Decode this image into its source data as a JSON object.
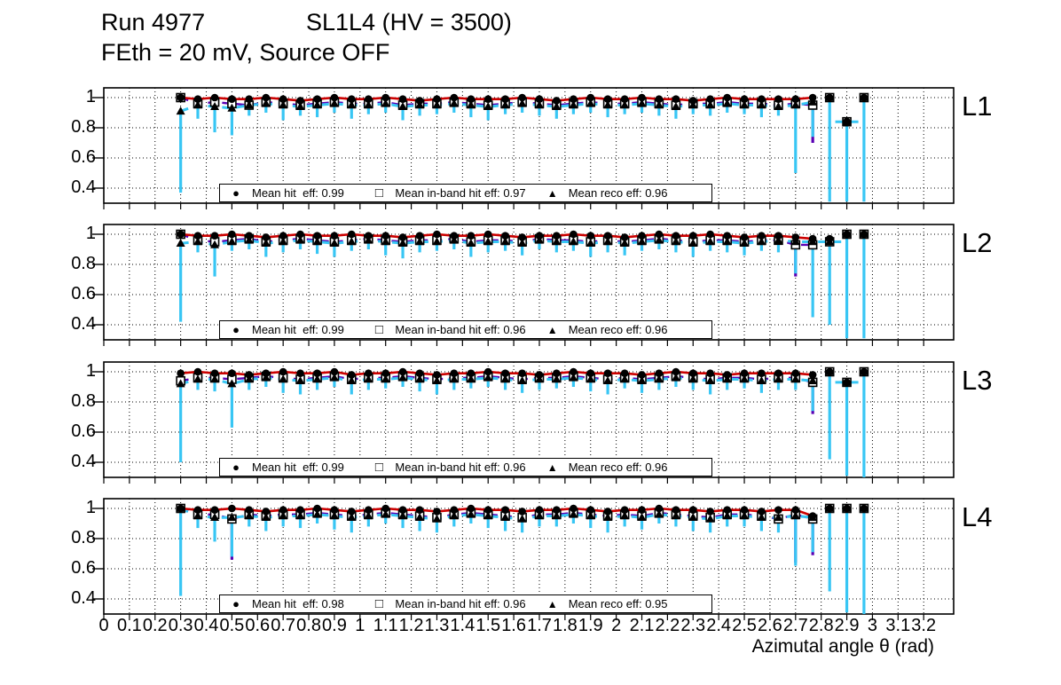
{
  "title": {
    "run": "Run 4977",
    "config": "SL1L4 (HV = 3500)",
    "subtitle": "FEth = 20 mV, Source OFF"
  },
  "axes": {
    "x_label": "Azimutal angle θ (rad)",
    "x_tick_labels": [
      "0",
      "0.1",
      "0.2",
      "0.3",
      "0.4",
      "0.5",
      "0.6",
      "0.7",
      "0.8",
      "0.9",
      "1",
      "1.1",
      "1.2",
      "1.3",
      "1.4",
      "1.5",
      "1.6",
      "1.7",
      "1.8",
      "1.9",
      "2",
      "2.1",
      "2.2",
      "2.3",
      "2.4",
      "2.5",
      "2.6",
      "2.7",
      "2.8",
      "2.9",
      "3",
      "3.1",
      "3.2"
    ],
    "x_tick_values": [
      0,
      0.1,
      0.2,
      0.3,
      0.4,
      0.5,
      0.6,
      0.7,
      0.8,
      0.9,
      1,
      1.1,
      1.2,
      1.3,
      1.4,
      1.5,
      1.6,
      1.7,
      1.8,
      1.9,
      2,
      2.1,
      2.2,
      2.3,
      2.4,
      2.5,
      2.6,
      2.7,
      2.8,
      2.9,
      3,
      3.1,
      3.2
    ],
    "x_min": 0,
    "x_max": 3.317,
    "y_tick_labels": [
      "1",
      "0.8",
      "0.6",
      "0.4"
    ],
    "y_tick_values": [
      1,
      0.8,
      0.6,
      0.4
    ],
    "y_view_min": 0.3,
    "y_view_max": 1.065,
    "grid": "dotted"
  },
  "colors": {
    "hit_line": "#cc0000",
    "inband_line": "#5a00b4",
    "reco_line": "#38c6f4",
    "marker": "#000000",
    "frame": "#000000",
    "background": "#ffffff"
  },
  "chart_data": {
    "type": "scatter",
    "note": "4 stacked efficiency panels vs azimuthal angle; three series per panel: hit eff (filled circle, red line), in-band hit eff (open square, purple dashed line), reco eff (filled triangle, cyan dashed line with downward cyan error bars)",
    "x": [
      0.3,
      0.367,
      0.433,
      0.5,
      0.567,
      0.633,
      0.7,
      0.767,
      0.833,
      0.9,
      0.967,
      1.033,
      1.1,
      1.167,
      1.233,
      1.3,
      1.367,
      1.433,
      1.5,
      1.567,
      1.633,
      1.7,
      1.767,
      1.833,
      1.9,
      1.967,
      2.033,
      2.1,
      2.167,
      2.233,
      2.3,
      2.367,
      2.433,
      2.5,
      2.567,
      2.633,
      2.7,
      2.767,
      2.833,
      2.9,
      2.967
    ],
    "series_markers": [
      "filled-circle",
      "open-square",
      "filled-triangle"
    ],
    "panels": [
      {
        "label": "L1",
        "legend": [
          "Mean hit  eff: 0.99",
          "Mean in-band hit eff: 0.97",
          "Mean reco eff: 0.96"
        ],
        "hit": [
          1.0,
          0.99,
          1.0,
          0.99,
          0.99,
          1.0,
          0.99,
          0.98,
          0.99,
          1.0,
          0.99,
          0.99,
          1.0,
          0.99,
          0.98,
          0.99,
          1.0,
          0.99,
          0.99,
          0.99,
          1.0,
          0.99,
          0.98,
          0.99,
          1.0,
          0.99,
          0.99,
          1.0,
          0.99,
          0.99,
          0.98,
          0.99,
          1.0,
          0.99,
          0.99,
          0.99,
          0.99,
          1.0,
          1.0,
          0.84,
          1.0
        ],
        "inband": [
          1.0,
          0.96,
          0.97,
          0.96,
          0.95,
          0.97,
          0.96,
          0.95,
          0.96,
          0.97,
          0.96,
          0.96,
          0.97,
          0.95,
          0.96,
          0.96,
          0.97,
          0.96,
          0.95,
          0.96,
          0.97,
          0.96,
          0.95,
          0.96,
          0.97,
          0.96,
          0.96,
          0.97,
          0.96,
          0.95,
          0.96,
          0.96,
          0.97,
          0.96,
          0.96,
          0.95,
          0.96,
          0.95,
          1.0,
          0.84,
          1.0
        ],
        "reco": [
          0.91,
          0.95,
          0.94,
          0.93,
          0.95,
          0.96,
          0.95,
          0.94,
          0.95,
          0.96,
          0.95,
          0.95,
          0.96,
          0.94,
          0.95,
          0.95,
          0.96,
          0.95,
          0.94,
          0.95,
          0.96,
          0.95,
          0.94,
          0.95,
          0.96,
          0.95,
          0.95,
          0.96,
          0.95,
          0.94,
          0.95,
          0.95,
          0.96,
          0.95,
          0.95,
          0.94,
          0.95,
          0.97,
          1.0,
          0.84,
          1.0
        ],
        "err_lo": [
          0.37,
          0.86,
          0.77,
          0.75,
          0.88,
          0.9,
          0.85,
          0.88,
          0.87,
          0.9,
          0.86,
          0.89,
          0.9,
          0.85,
          0.88,
          0.89,
          0.9,
          0.87,
          0.85,
          0.89,
          0.9,
          0.88,
          0.86,
          0.89,
          0.9,
          0.87,
          0.89,
          0.9,
          0.88,
          0.86,
          0.89,
          0.88,
          0.9,
          0.89,
          0.87,
          0.88,
          0.5,
          0.74,
          0.31,
          0.31,
          0.31
        ],
        "purple_bars": [
          {
            "i": 37,
            "lo": 0.7
          }
        ]
      },
      {
        "label": "L2",
        "legend": [
          "Mean hit  eff: 0.99",
          "Mean in-band hit eff: 0.96",
          "Mean reco eff: 0.96"
        ],
        "hit": [
          1.0,
          0.99,
          0.99,
          1.0,
          0.99,
          0.98,
          0.99,
          1.0,
          0.99,
          0.99,
          1.0,
          0.99,
          0.99,
          0.98,
          0.99,
          1.0,
          0.99,
          0.99,
          1.0,
          0.99,
          0.98,
          0.99,
          0.99,
          1.0,
          0.99,
          0.99,
          0.98,
          0.99,
          1.0,
          0.99,
          0.99,
          1.0,
          0.99,
          0.98,
          0.99,
          0.99,
          0.98,
          0.97,
          0.97,
          1.0,
          1.0
        ],
        "inband": [
          1.0,
          0.96,
          0.95,
          0.96,
          0.97,
          0.95,
          0.96,
          0.97,
          0.96,
          0.95,
          0.96,
          0.97,
          0.96,
          0.95,
          0.96,
          0.96,
          0.97,
          0.95,
          0.96,
          0.96,
          0.95,
          0.97,
          0.96,
          0.96,
          0.95,
          0.96,
          0.95,
          0.96,
          0.97,
          0.96,
          0.95,
          0.96,
          0.96,
          0.95,
          0.96,
          0.96,
          0.93,
          0.93,
          0.95,
          1.0,
          1.0
        ],
        "reco": [
          0.94,
          0.95,
          0.93,
          0.95,
          0.96,
          0.94,
          0.95,
          0.96,
          0.95,
          0.94,
          0.95,
          0.96,
          0.95,
          0.94,
          0.95,
          0.95,
          0.96,
          0.94,
          0.95,
          0.95,
          0.94,
          0.96,
          0.95,
          0.95,
          0.94,
          0.95,
          0.94,
          0.95,
          0.96,
          0.95,
          0.94,
          0.95,
          0.95,
          0.94,
          0.95,
          0.96,
          0.95,
          0.95,
          0.95,
          1.0,
          1.0
        ],
        "err_lo": [
          0.42,
          0.88,
          0.72,
          0.89,
          0.9,
          0.85,
          0.88,
          0.9,
          0.87,
          0.85,
          0.89,
          0.9,
          0.86,
          0.84,
          0.88,
          0.89,
          0.9,
          0.85,
          0.88,
          0.89,
          0.86,
          0.9,
          0.88,
          0.89,
          0.85,
          0.88,
          0.86,
          0.89,
          0.9,
          0.88,
          0.85,
          0.89,
          0.88,
          0.86,
          0.89,
          0.88,
          0.74,
          0.45,
          0.4,
          0.31,
          0.31
        ],
        "purple_bars": [
          {
            "i": 36,
            "lo": 0.72
          }
        ]
      },
      {
        "label": "L3",
        "legend": [
          "Mean hit  eff: 0.99",
          "Mean in-band hit eff: 0.96",
          "Mean reco eff: 0.96"
        ],
        "hit": [
          0.99,
          1.0,
          0.99,
          0.99,
          0.98,
          0.99,
          1.0,
          0.99,
          0.99,
          1.0,
          0.98,
          0.99,
          0.99,
          1.0,
          0.99,
          0.98,
          0.99,
          0.99,
          1.0,
          0.99,
          0.99,
          0.98,
          0.99,
          1.0,
          0.99,
          0.99,
          0.99,
          0.98,
          0.99,
          1.0,
          0.99,
          0.99,
          0.98,
          0.99,
          0.99,
          0.99,
          0.99,
          0.98,
          1.0,
          0.93,
          1.0
        ],
        "inband": [
          0.94,
          0.96,
          0.96,
          0.95,
          0.96,
          0.97,
          0.96,
          0.95,
          0.96,
          0.97,
          0.95,
          0.96,
          0.96,
          0.97,
          0.96,
          0.95,
          0.96,
          0.96,
          0.97,
          0.96,
          0.95,
          0.96,
          0.96,
          0.97,
          0.96,
          0.95,
          0.96,
          0.95,
          0.96,
          0.97,
          0.96,
          0.95,
          0.96,
          0.96,
          0.95,
          0.96,
          0.96,
          0.93,
          1.0,
          0.93,
          1.0
        ],
        "reco": [
          0.92,
          0.95,
          0.95,
          0.92,
          0.95,
          0.96,
          0.95,
          0.94,
          0.95,
          0.96,
          0.94,
          0.95,
          0.95,
          0.96,
          0.95,
          0.94,
          0.95,
          0.95,
          0.96,
          0.95,
          0.94,
          0.95,
          0.95,
          0.96,
          0.95,
          0.94,
          0.95,
          0.94,
          0.95,
          0.96,
          0.95,
          0.94,
          0.95,
          0.95,
          0.94,
          0.95,
          0.95,
          0.94,
          1.0,
          0.93,
          1.0
        ],
        "err_lo": [
          0.4,
          0.88,
          0.87,
          0.63,
          0.88,
          0.9,
          0.86,
          0.85,
          0.88,
          0.9,
          0.85,
          0.88,
          0.89,
          0.9,
          0.87,
          0.85,
          0.88,
          0.89,
          0.9,
          0.88,
          0.86,
          0.88,
          0.89,
          0.9,
          0.87,
          0.85,
          0.89,
          0.86,
          0.88,
          0.9,
          0.88,
          0.85,
          0.88,
          0.89,
          0.86,
          0.88,
          0.88,
          0.74,
          0.42,
          0.31,
          0.3
        ],
        "purple_bars": [
          {
            "i": 37,
            "lo": 0.72
          }
        ]
      },
      {
        "label": "L4",
        "legend": [
          "Mean hit  eff: 0.98",
          "Mean in-band hit eff: 0.96",
          "Mean reco eff: 0.95"
        ],
        "hit": [
          1.0,
          0.99,
          0.99,
          1.0,
          0.99,
          0.98,
          0.99,
          0.99,
          1.0,
          0.99,
          0.98,
          0.99,
          1.0,
          0.99,
          0.99,
          0.98,
          0.99,
          1.0,
          0.99,
          0.99,
          0.98,
          0.99,
          0.99,
          1.0,
          0.99,
          0.98,
          0.99,
          0.99,
          1.0,
          0.99,
          0.99,
          0.98,
          0.99,
          0.99,
          0.98,
          0.99,
          0.99,
          0.95,
          1.0,
          1.0,
          1.0
        ],
        "inband": [
          1.0,
          0.96,
          0.96,
          0.93,
          0.96,
          0.95,
          0.96,
          0.96,
          0.97,
          0.96,
          0.95,
          0.96,
          0.97,
          0.96,
          0.95,
          0.94,
          0.96,
          0.97,
          0.96,
          0.95,
          0.94,
          0.96,
          0.96,
          0.97,
          0.96,
          0.95,
          0.96,
          0.95,
          0.97,
          0.96,
          0.95,
          0.94,
          0.96,
          0.96,
          0.95,
          0.93,
          0.96,
          0.93,
          1.0,
          1.0,
          1.0
        ],
        "reco": [
          1.0,
          0.95,
          0.94,
          0.94,
          0.95,
          0.94,
          0.95,
          0.95,
          0.96,
          0.95,
          0.94,
          0.95,
          0.96,
          0.95,
          0.94,
          0.93,
          0.95,
          0.96,
          0.95,
          0.94,
          0.93,
          0.95,
          0.95,
          0.96,
          0.95,
          0.94,
          0.95,
          0.94,
          0.96,
          0.95,
          0.94,
          0.93,
          0.95,
          0.95,
          0.94,
          0.94,
          0.95,
          0.94,
          1.0,
          1.0,
          1.0
        ],
        "err_lo": [
          0.42,
          0.87,
          0.78,
          0.68,
          0.88,
          0.85,
          0.88,
          0.87,
          0.9,
          0.86,
          0.84,
          0.88,
          0.9,
          0.87,
          0.85,
          0.84,
          0.88,
          0.9,
          0.87,
          0.85,
          0.84,
          0.88,
          0.88,
          0.9,
          0.87,
          0.84,
          0.88,
          0.86,
          0.9,
          0.88,
          0.85,
          0.84,
          0.88,
          0.88,
          0.85,
          0.84,
          0.62,
          0.71,
          0.45,
          0.31,
          0.3
        ],
        "purple_bars": [
          {
            "i": 3,
            "lo": 0.66
          },
          {
            "i": 36,
            "lo": 0.64
          },
          {
            "i": 37,
            "lo": 0.69
          }
        ]
      }
    ]
  }
}
